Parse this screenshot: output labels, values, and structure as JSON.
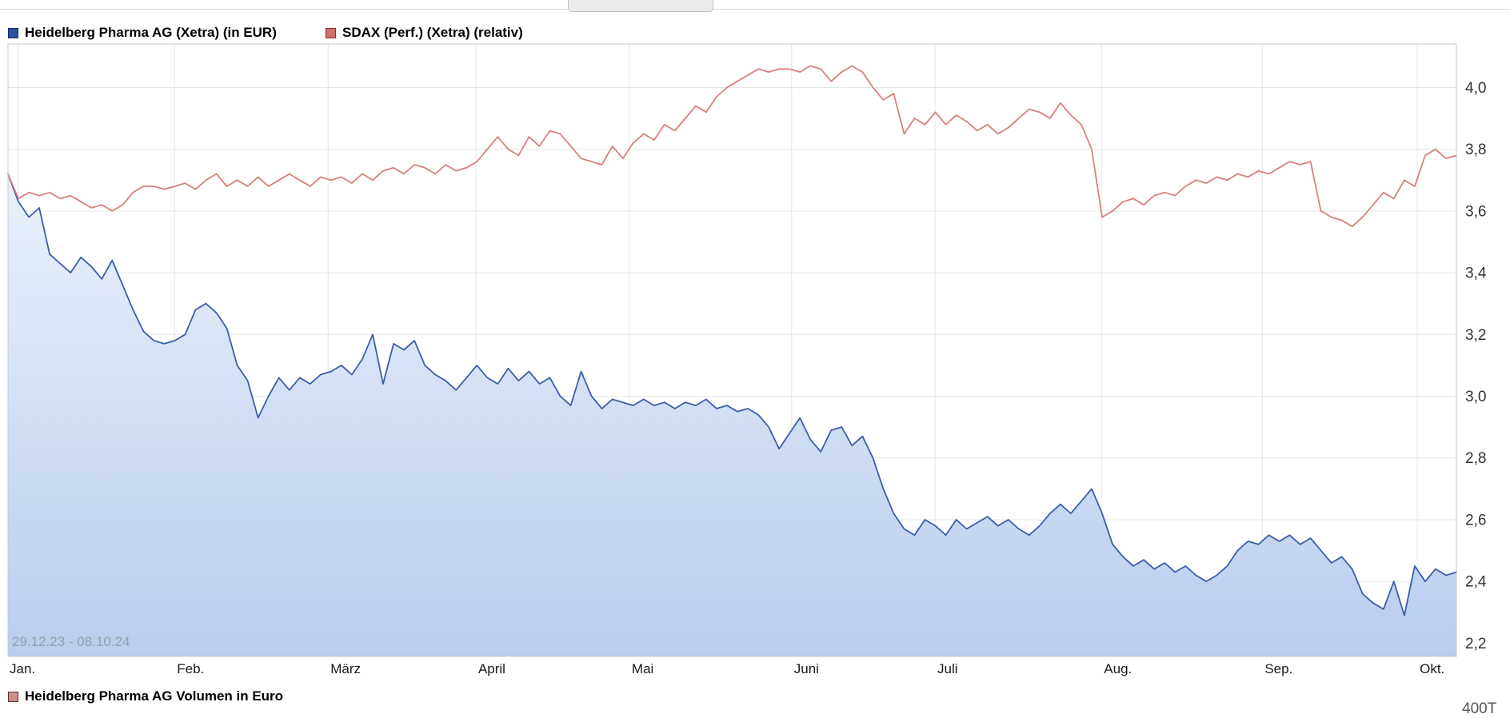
{
  "top_bar": {
    "handle": "collapsed-panel-handle"
  },
  "legend_top": [
    {
      "label": "Heidelberg Pharma AG (Xetra) (in EUR)",
      "swatch": {
        "fill": "#2a4f9d",
        "border": "#10306e"
      }
    },
    {
      "label": "SDAX (Perf.) (Xetra) (relativ)",
      "swatch": {
        "fill": "#d0706e",
        "border": "#8e2f2e"
      }
    }
  ],
  "legend_bottom": {
    "label": "Heidelberg Pharma AG Volumen in Euro",
    "swatch": {
      "fill": "#cd8e8e",
      "border": "#5f3434"
    }
  },
  "volume_axis_partial": "400T",
  "chart_data": {
    "type": "line",
    "title": "",
    "subtitle": "",
    "date_range": "29.12.23 - 08.10.24",
    "xlabel": "",
    "ylabel": "",
    "ylim": [
      2.157,
      4.141
    ],
    "grid": true,
    "legend_position": "top",
    "colors": {
      "grid": "#e6e6e6",
      "border": "#c8c8c8",
      "axis_text": "#333333",
      "axis_text2": "#1a1a1a",
      "area_top": "#eaf1fb",
      "area_bottom": "#b9cdee"
    },
    "yticks": [
      {
        "value": 4.0,
        "label": "4,0"
      },
      {
        "value": 3.8,
        "label": "3,8"
      },
      {
        "value": 3.6,
        "label": "3,6"
      },
      {
        "value": 3.4,
        "label": "3,4"
      },
      {
        "value": 3.2,
        "label": "3,2"
      },
      {
        "value": 3.0,
        "label": "3,0"
      },
      {
        "value": 2.8,
        "label": "2,8"
      },
      {
        "value": 2.6,
        "label": "2,6"
      },
      {
        "value": 2.4,
        "label": "2,4"
      },
      {
        "value": 2.2,
        "label": "2,2"
      }
    ],
    "xticks": [
      {
        "f": 0.007,
        "label": "Jan."
      },
      {
        "f": 0.115,
        "label": "Feb."
      },
      {
        "f": 0.221,
        "label": "März"
      },
      {
        "f": 0.323,
        "label": "April"
      },
      {
        "f": 0.429,
        "label": "Mai"
      },
      {
        "f": 0.541,
        "label": "Juni"
      },
      {
        "f": 0.64,
        "label": "Juli"
      },
      {
        "f": 0.755,
        "label": "Aug."
      },
      {
        "f": 0.866,
        "label": "Sep."
      },
      {
        "f": 0.973,
        "label": "Okt."
      }
    ],
    "series": [
      {
        "name": "Heidelberg Pharma AG (Xetra) (in EUR)",
        "type": "area",
        "color": "#3b5ea7",
        "fill": true,
        "values": [
          3.72,
          3.63,
          3.58,
          3.61,
          3.46,
          3.43,
          3.4,
          3.45,
          3.42,
          3.38,
          3.44,
          3.36,
          3.28,
          3.21,
          3.18,
          3.17,
          3.18,
          3.2,
          3.28,
          3.3,
          3.27,
          3.22,
          3.1,
          3.05,
          2.93,
          3.0,
          3.06,
          3.02,
          3.06,
          3.04,
          3.07,
          3.08,
          3.1,
          3.07,
          3.12,
          3.2,
          3.04,
          3.17,
          3.15,
          3.18,
          3.1,
          3.07,
          3.05,
          3.02,
          3.06,
          3.1,
          3.06,
          3.04,
          3.09,
          3.05,
          3.08,
          3.04,
          3.06,
          3.0,
          2.97,
          3.08,
          3.0,
          2.96,
          2.99,
          2.98,
          2.97,
          2.99,
          2.97,
          2.98,
          2.96,
          2.98,
          2.97,
          2.99,
          2.96,
          2.97,
          2.95,
          2.96,
          2.94,
          2.9,
          2.83,
          2.88,
          2.93,
          2.86,
          2.82,
          2.89,
          2.9,
          2.84,
          2.87,
          2.8,
          2.7,
          2.62,
          2.57,
          2.55,
          2.6,
          2.58,
          2.55,
          2.6,
          2.57,
          2.59,
          2.61,
          2.58,
          2.6,
          2.57,
          2.55,
          2.58,
          2.62,
          2.65,
          2.62,
          2.66,
          2.7,
          2.62,
          2.52,
          2.48,
          2.45,
          2.47,
          2.44,
          2.46,
          2.43,
          2.45,
          2.42,
          2.4,
          2.42,
          2.45,
          2.5,
          2.53,
          2.52,
          2.55,
          2.53,
          2.55,
          2.52,
          2.54,
          2.5,
          2.46,
          2.48,
          2.44,
          2.36,
          2.33,
          2.31,
          2.4,
          2.29,
          2.45,
          2.4,
          2.44,
          2.42,
          2.43
        ]
      },
      {
        "name": "SDAX (Perf.) (Xetra) (relativ)",
        "type": "line",
        "color": "#d8807d",
        "fill": false,
        "values": [
          3.72,
          3.64,
          3.66,
          3.65,
          3.66,
          3.64,
          3.65,
          3.63,
          3.61,
          3.62,
          3.6,
          3.62,
          3.66,
          3.68,
          3.68,
          3.67,
          3.68,
          3.69,
          3.67,
          3.7,
          3.72,
          3.68,
          3.7,
          3.68,
          3.71,
          3.68,
          3.7,
          3.72,
          3.7,
          3.68,
          3.71,
          3.7,
          3.71,
          3.69,
          3.72,
          3.7,
          3.73,
          3.74,
          3.72,
          3.75,
          3.74,
          3.72,
          3.75,
          3.73,
          3.74,
          3.76,
          3.8,
          3.84,
          3.8,
          3.78,
          3.84,
          3.81,
          3.86,
          3.85,
          3.81,
          3.77,
          3.76,
          3.75,
          3.81,
          3.77,
          3.82,
          3.85,
          3.83,
          3.88,
          3.86,
          3.9,
          3.94,
          3.92,
          3.97,
          4.0,
          4.02,
          4.04,
          4.06,
          4.05,
          4.06,
          4.06,
          4.05,
          4.07,
          4.06,
          4.02,
          4.05,
          4.07,
          4.05,
          4.0,
          3.96,
          3.98,
          3.85,
          3.9,
          3.88,
          3.92,
          3.88,
          3.91,
          3.89,
          3.86,
          3.88,
          3.85,
          3.87,
          3.9,
          3.93,
          3.92,
          3.9,
          3.95,
          3.91,
          3.88,
          3.8,
          3.58,
          3.6,
          3.63,
          3.64,
          3.62,
          3.65,
          3.66,
          3.65,
          3.68,
          3.7,
          3.69,
          3.71,
          3.7,
          3.72,
          3.71,
          3.73,
          3.72,
          3.74,
          3.76,
          3.75,
          3.76,
          3.6,
          3.58,
          3.57,
          3.55,
          3.58,
          3.62,
          3.66,
          3.64,
          3.7,
          3.68,
          3.78,
          3.8,
          3.77,
          3.78
        ]
      }
    ]
  }
}
